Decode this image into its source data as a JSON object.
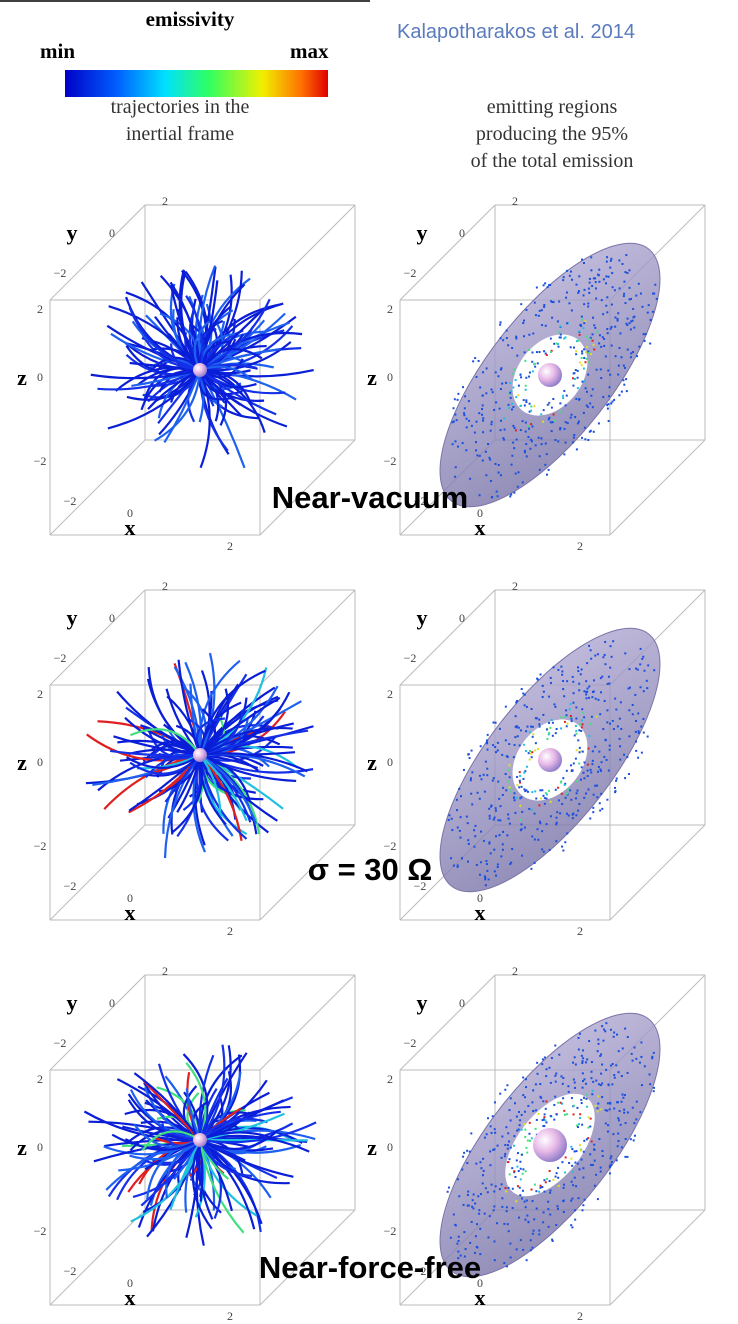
{
  "header": {
    "colorbar_title": "emissivity",
    "min": "min",
    "max": "max",
    "citation": "Kalapotharakos et al. 2014"
  },
  "columns": [
    [
      "trajectories in the",
      "inertial frame"
    ],
    [
      "emitting regions",
      "producing the 95%",
      "of the total emission"
    ]
  ],
  "axes": {
    "x": "x",
    "y": "y",
    "z": "z",
    "ticks": [
      "−2",
      "0",
      "2"
    ]
  },
  "rows": [
    {
      "label": "Near-vacuum"
    },
    {
      "label": "σ = 30 Ω"
    },
    {
      "label": "Near-force-free"
    }
  ]
}
